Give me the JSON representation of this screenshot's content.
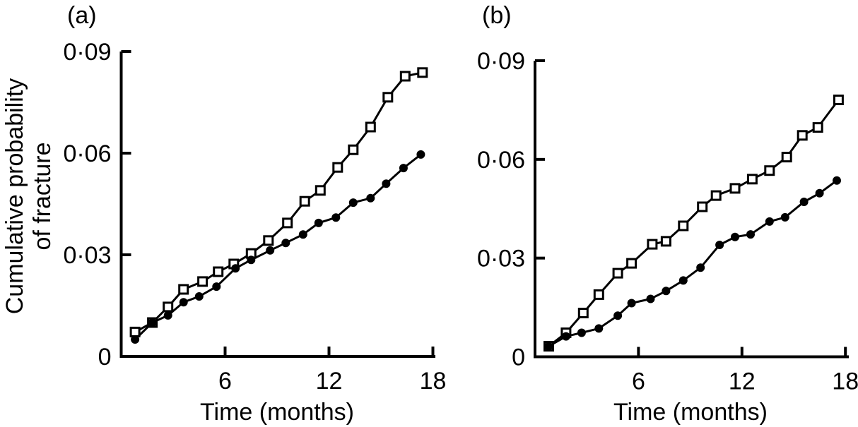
{
  "figure": {
    "description": "Two-panel line chart of cumulative probability of fracture over time",
    "colors": {
      "foreground": "#000000",
      "background": "#ffffff"
    }
  },
  "chart_data": [
    {
      "id": "a",
      "type": "line",
      "panel_label": "(a)",
      "title": "",
      "xlabel": "Time (months)",
      "ylabel": "Cumulative probability of fracture",
      "ylabel_lines": [
        "Cumulative probability",
        "of fracture"
      ],
      "xlim": [
        0,
        18
      ],
      "ylim": [
        0,
        0.09
      ],
      "grid": false,
      "legend": "none",
      "x_ticks": [
        {
          "v": 6,
          "label": "6"
        },
        {
          "v": 12,
          "label": "12"
        },
        {
          "v": 18,
          "label": "18"
        }
      ],
      "y_ticks": [
        {
          "v": 0,
          "label": "0"
        },
        {
          "v": 0.03,
          "label": "0·03"
        },
        {
          "v": 0.06,
          "label": "0·06"
        },
        {
          "v": 0.09,
          "label": "0·09"
        }
      ],
      "series": [
        {
          "name": "open squares",
          "marker": "open-square",
          "x": [
            0.8,
            1.8,
            2.7,
            3.6,
            4.7,
            5.6,
            6.5,
            7.5,
            8.5,
            9.6,
            10.6,
            11.5,
            12.5,
            13.4,
            14.4,
            15.4,
            16.4,
            17.4
          ],
          "y": [
            0.0072,
            0.01,
            0.0146,
            0.0198,
            0.0221,
            0.025,
            0.0273,
            0.0304,
            0.0342,
            0.0394,
            0.0458,
            0.049,
            0.0558,
            0.061,
            0.0677,
            0.0765,
            0.0827,
            0.0838
          ]
        },
        {
          "name": "filled circles",
          "marker": "filled-circle",
          "x": [
            0.8,
            1.8,
            2.7,
            3.6,
            4.5,
            5.5,
            6.6,
            7.5,
            8.6,
            9.5,
            10.5,
            11.4,
            12.4,
            13.4,
            14.4,
            15.3,
            16.3,
            17.3
          ],
          "y": [
            0.005,
            0.01,
            0.0121,
            0.016,
            0.0177,
            0.0206,
            0.026,
            0.0285,
            0.0313,
            0.0335,
            0.036,
            0.0394,
            0.041,
            0.0454,
            0.0467,
            0.051,
            0.0556,
            0.0596
          ]
        }
      ]
    },
    {
      "id": "b",
      "type": "line",
      "panel_label": "(b)",
      "title": "",
      "xlabel": "Time (months)",
      "ylabel": "",
      "xlim": [
        0,
        18
      ],
      "ylim": [
        0,
        0.09
      ],
      "grid": false,
      "legend": "none",
      "x_ticks": [
        {
          "v": 6,
          "label": "6"
        },
        {
          "v": 12,
          "label": "12"
        },
        {
          "v": 18,
          "label": "18"
        }
      ],
      "y_ticks": [
        {
          "v": 0,
          "label": "0"
        },
        {
          "v": 0.03,
          "label": "0·03"
        },
        {
          "v": 0.06,
          "label": "0·06"
        },
        {
          "v": 0.09,
          "label": "0·09"
        }
      ],
      "series": [
        {
          "name": "open squares",
          "marker": "open-square",
          "x": [
            0.8,
            1.8,
            2.8,
            3.7,
            4.8,
            5.6,
            6.8,
            7.6,
            8.6,
            9.7,
            10.5,
            11.6,
            12.6,
            13.6,
            14.6,
            15.5,
            16.4,
            17.6
          ],
          "y": [
            0.0032,
            0.0073,
            0.0133,
            0.0189,
            0.0254,
            0.0284,
            0.0342,
            0.0351,
            0.0398,
            0.0456,
            0.049,
            0.0512,
            0.054,
            0.0566,
            0.0607,
            0.0673,
            0.0697,
            0.0781
          ]
        },
        {
          "name": "filled circles",
          "marker": "filled-circle",
          "x": [
            0.8,
            1.8,
            2.7,
            3.7,
            4.8,
            5.6,
            6.7,
            7.6,
            8.6,
            9.6,
            10.7,
            11.6,
            12.5,
            13.6,
            14.5,
            15.6,
            16.5,
            17.5
          ],
          "y": [
            0.0032,
            0.0062,
            0.0073,
            0.0086,
            0.0125,
            0.0163,
            0.0176,
            0.02,
            0.0232,
            0.0271,
            0.034,
            0.0364,
            0.0372,
            0.0411,
            0.0424,
            0.0471,
            0.0497,
            0.0536
          ]
        }
      ]
    }
  ]
}
